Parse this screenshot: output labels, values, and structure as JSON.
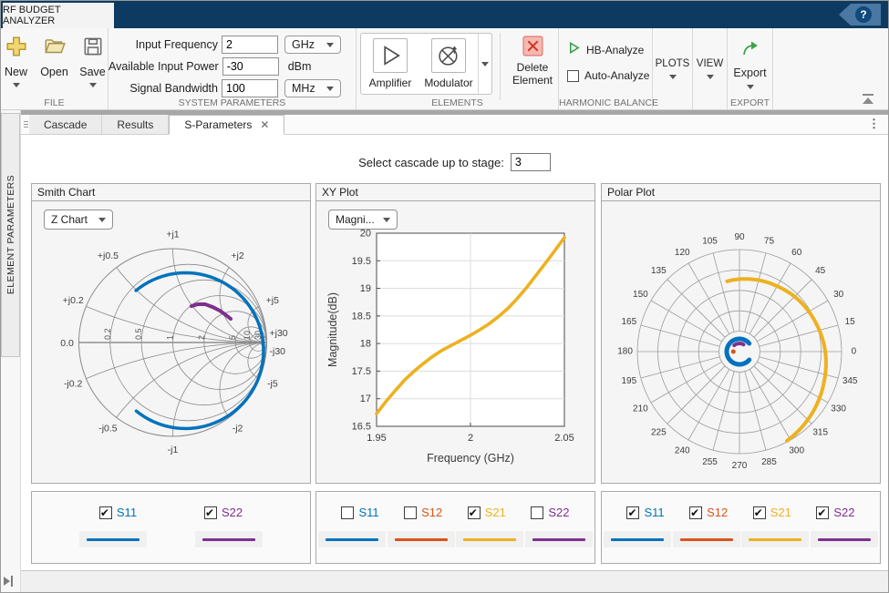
{
  "colors": {
    "s11": "#0072BD",
    "s12": "#D95319",
    "s21": "#EDB120",
    "s22": "#7E2F8E"
  },
  "title_bar": {
    "app_tab": "RF BUDGET ANALYZER",
    "help_icon": "question-mark"
  },
  "toolbar": {
    "file": {
      "section_label": "FILE",
      "new_label": "New",
      "open_label": "Open",
      "save_label": "Save",
      "icons": [
        "new-plus-icon",
        "open-folder-icon",
        "save-floppy-icon"
      ]
    },
    "system_parameters": {
      "section_label": "SYSTEM PARAMETERS",
      "rows": [
        {
          "label": "Input Frequency",
          "value": "2",
          "unit": "GHz",
          "unit_control": "dropdown"
        },
        {
          "label": "Available Input Power",
          "value": "-30",
          "unit": "dBm",
          "unit_control": "text"
        },
        {
          "label": "Signal Bandwidth",
          "value": "100",
          "unit": "MHz",
          "unit_control": "dropdown"
        }
      ]
    },
    "elements": {
      "section_label": "ELEMENTS",
      "amplifier_label": "Amplifier",
      "modulator_label": "Modulator",
      "delete_line1": "Delete",
      "delete_line2": "Element",
      "icons": [
        "amplifier-icon",
        "modulator-icon",
        "delete-x-icon"
      ]
    },
    "harmonic_balance": {
      "section_label": "HARMONIC BALANCE",
      "hb_analyze_label": "HB-Analyze",
      "auto_analyze_label": "Auto-Analyze",
      "auto_analyze_checked": false,
      "icons": [
        "green-play-icon",
        "checkbox-icon"
      ]
    },
    "plots_label": "PLOTS",
    "view_label": "VIEW",
    "export": {
      "section_label": "EXPORT",
      "button_label": "Export",
      "icon": "green-export-arrow-icon"
    }
  },
  "tab_bar": {
    "tabs": [
      {
        "label": "Cascade",
        "active": false
      },
      {
        "label": "Results",
        "active": false
      },
      {
        "label": "S-Parameters",
        "active": true,
        "closable": true
      }
    ]
  },
  "left_panel": {
    "tab_label": "ELEMENT PARAMETERS"
  },
  "stage_selector": {
    "label": "Select cascade up to stage:",
    "value": "3"
  },
  "panels": {
    "smith": {
      "title": "Smith Chart",
      "type_dropdown": "Z Chart",
      "legend": [
        {
          "label": "S11",
          "checked": true,
          "color_key": "s11"
        },
        {
          "label": "S22",
          "checked": true,
          "color_key": "s22"
        }
      ]
    },
    "xy": {
      "title": "XY Plot",
      "type_dropdown": "Magni...",
      "legend": [
        {
          "label": "S11",
          "checked": false,
          "color_key": "s11"
        },
        {
          "label": "S12",
          "checked": false,
          "color_key": "s12"
        },
        {
          "label": "S21",
          "checked": true,
          "color_key": "s21"
        },
        {
          "label": "S22",
          "checked": false,
          "color_key": "s22"
        }
      ]
    },
    "polar": {
      "title": "Polar Plot",
      "legend": [
        {
          "label": "S11",
          "checked": true,
          "color_key": "s11"
        },
        {
          "label": "S12",
          "checked": true,
          "color_key": "s12"
        },
        {
          "label": "S21",
          "checked": true,
          "color_key": "s21"
        },
        {
          "label": "S22",
          "checked": true,
          "color_key": "s22"
        }
      ]
    }
  },
  "chart_data": [
    {
      "id": "smith",
      "type": "smith",
      "resistance_circles": [
        0.2,
        0.5,
        1,
        2,
        5,
        10,
        30
      ],
      "reactance_values": [
        0.2,
        0.5,
        1,
        2,
        5,
        30
      ],
      "labels": {
        "zero": "0.0",
        "real": [
          "0.2",
          "0.5",
          "1",
          "2",
          "5",
          "10",
          "30"
        ],
        "pos": [
          "+j0.2",
          "+j0.5",
          "+j1",
          "+j2",
          "+j5",
          "+j30"
        ],
        "neg": [
          "-j0.2",
          "-j0.5",
          "-j1",
          "-j2",
          "-j5",
          "-j30"
        ]
      },
      "series": [
        {
          "name": "S11",
          "color": "#0072BD",
          "type": "arc",
          "center": [
            0.136,
            -0.087
          ],
          "radius": 0.83,
          "start_deg": 129.5,
          "end_deg": -129.2,
          "width": 3.5
        },
        {
          "name": "S22",
          "color": "#7E2F8E",
          "type": "points",
          "width": 4,
          "points": [
            [
              0.199,
              0.388
            ],
            [
              0.267,
              0.408
            ],
            [
              0.345,
              0.408
            ],
            [
              0.422,
              0.379
            ],
            [
              0.5,
              0.34
            ],
            [
              0.568,
              0.291
            ],
            [
              0.617,
              0.252
            ]
          ]
        }
      ]
    },
    {
      "id": "xy",
      "type": "line",
      "xlabel": "Frequency (GHz)",
      "ylabel": "Magnitude(dB)",
      "xlim": [
        1.95,
        2.05
      ],
      "ylim": [
        16.5,
        20
      ],
      "xticks": [
        1.95,
        2,
        2.05
      ],
      "xtick_labels": [
        "1.95",
        "2",
        "2.05"
      ],
      "yticks": [
        16.5,
        17,
        17.5,
        18,
        18.5,
        19,
        19.5,
        20
      ],
      "ytick_labels": [
        "16.5",
        "17",
        "17.5",
        "18",
        "18.5",
        "19",
        "19.5",
        "20"
      ],
      "grid": true,
      "series": [
        {
          "name": "S21",
          "color": "#EDB120",
          "width": 3.6,
          "x": [
            1.95,
            1.955,
            1.96,
            1.965,
            1.97,
            1.975,
            1.98,
            1.985,
            1.99,
            1.995,
            2,
            2.005,
            2.01,
            2.015,
            2.02,
            2.025,
            2.03,
            2.035,
            2.04,
            2.045,
            2.05
          ],
          "y": [
            16.73,
            16.95,
            17.15,
            17.34,
            17.5,
            17.64,
            17.77,
            17.88,
            17.97,
            18.06,
            18.15,
            18.25,
            18.36,
            18.49,
            18.64,
            18.82,
            19.02,
            19.24,
            19.46,
            19.69,
            19.92
          ]
        }
      ]
    },
    {
      "id": "polar",
      "type": "polar",
      "rings": 5,
      "angle_step_deg": 15,
      "angle_labels": [
        "0",
        "15",
        "30",
        "45",
        "60",
        "75",
        "90",
        "105",
        "120",
        "135",
        "150",
        "165",
        "180",
        "195",
        "210",
        "225",
        "240",
        "255",
        "270",
        "285",
        "300",
        "315",
        "330",
        "345"
      ],
      "series": [
        {
          "name": "S21",
          "color": "#EDB120",
          "type": "spiral",
          "width": 4,
          "points_polar": [
            [
              100,
              0.7
            ],
            [
              60,
              0.74
            ],
            [
              20,
              0.8
            ],
            [
              -20,
              0.88
            ],
            [
              -62,
              0.99
            ]
          ]
        },
        {
          "name": "S11",
          "color": "#0072BD",
          "type": "ring_arc",
          "width": 5,
          "r": 0.125,
          "start_deg": 40,
          "end_deg": 320
        },
        {
          "name": "S22",
          "color": "#7E2F8E",
          "type": "ring_arc",
          "width": 4,
          "r": 0.08,
          "start_deg": 60,
          "end_deg": 130
        },
        {
          "name": "S12",
          "color": "#D95319",
          "type": "dot",
          "r": 0.06,
          "angle_deg": 180,
          "size": 2.5
        }
      ]
    }
  ]
}
